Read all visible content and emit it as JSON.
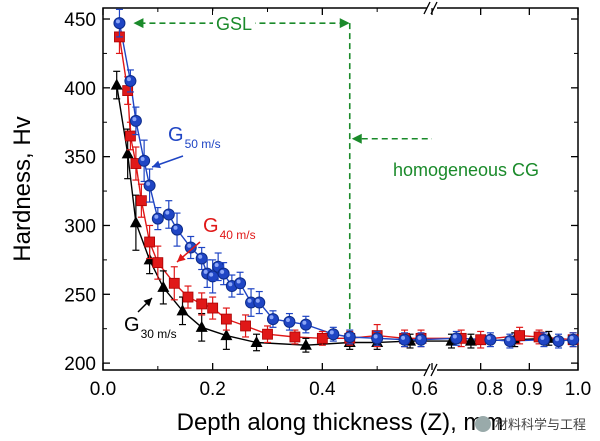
{
  "chart_data": {
    "type": "scatter",
    "xlabel": "Depth along thickness (Z), mm",
    "ylabel": "Hardness, Hv",
    "ylim": [
      195,
      458
    ],
    "yticks": [
      200,
      250,
      300,
      350,
      400,
      450
    ],
    "x_axis_segments": [
      {
        "range": [
          0.0,
          0.6
        ],
        "ticks": [
          0.0,
          0.2,
          0.4,
          0.6
        ],
        "tick_labels": [
          "0.0",
          "0.2",
          "0.4",
          "0.6"
        ]
      },
      {
        "range": [
          0.7,
          1.0
        ],
        "ticks": [
          0.8,
          0.9,
          1.0
        ],
        "tick_labels": [
          "0.8",
          "0.9",
          "1.0"
        ]
      }
    ],
    "axis_break": "between 0.6 and 0.7",
    "series": [
      {
        "name": "G50m/s",
        "label_main": "G",
        "label_sub": "50 m/s",
        "color": "#1f45c4",
        "marker": "circle",
        "points": [
          [
            0.03,
            447,
            10
          ],
          [
            0.05,
            405,
            8
          ],
          [
            0.06,
            376,
            10
          ],
          [
            0.075,
            347,
            15
          ],
          [
            0.085,
            329,
            12
          ],
          [
            0.1,
            305,
            8
          ],
          [
            0.12,
            308,
            10
          ],
          [
            0.135,
            297,
            12
          ],
          [
            0.16,
            284,
            8
          ],
          [
            0.18,
            276,
            8
          ],
          [
            0.19,
            265,
            10
          ],
          [
            0.2,
            263,
            12
          ],
          [
            0.21,
            270,
            10
          ],
          [
            0.22,
            265,
            8
          ],
          [
            0.235,
            256,
            8
          ],
          [
            0.25,
            258,
            8
          ],
          [
            0.27,
            244,
            10
          ],
          [
            0.285,
            244,
            8
          ],
          [
            0.31,
            232,
            6
          ],
          [
            0.34,
            230,
            6
          ],
          [
            0.37,
            228,
            6
          ],
          [
            0.42,
            221,
            5
          ],
          [
            0.45,
            219,
            5
          ],
          [
            0.5,
            218,
            5
          ],
          [
            0.55,
            217,
            5
          ],
          [
            0.58,
            217,
            5
          ],
          [
            0.75,
            218,
            5
          ],
          [
            0.82,
            217,
            5
          ],
          [
            0.86,
            216,
            5
          ],
          [
            0.93,
            217,
            5
          ],
          [
            0.96,
            216,
            5
          ],
          [
            0.99,
            217,
            5
          ]
        ]
      },
      {
        "name": "G40m/s",
        "label_main": "G",
        "label_sub": "40 m/s",
        "color": "#e01818",
        "marker": "square",
        "points": [
          [
            0.03,
            437,
            12
          ],
          [
            0.045,
            398,
            10
          ],
          [
            0.05,
            365,
            10
          ],
          [
            0.06,
            345,
            12
          ],
          [
            0.07,
            318,
            12
          ],
          [
            0.085,
            288,
            12
          ],
          [
            0.1,
            273,
            12
          ],
          [
            0.13,
            258,
            12
          ],
          [
            0.155,
            248,
            8
          ],
          [
            0.18,
            243,
            8
          ],
          [
            0.2,
            240,
            8
          ],
          [
            0.225,
            232,
            8
          ],
          [
            0.26,
            227,
            8
          ],
          [
            0.3,
            221,
            6
          ],
          [
            0.35,
            219,
            5
          ],
          [
            0.4,
            218,
            5
          ],
          [
            0.45,
            218,
            5
          ],
          [
            0.5,
            220,
            8
          ],
          [
            0.55,
            218,
            6
          ],
          [
            0.58,
            218,
            6
          ],
          [
            0.76,
            218,
            6
          ],
          [
            0.8,
            217,
            6
          ],
          [
            0.88,
            220,
            6
          ],
          [
            0.92,
            219,
            5
          ],
          [
            0.99,
            217,
            5
          ]
        ]
      },
      {
        "name": "G30m/s",
        "label_main": "G",
        "label_sub": "30 m/s",
        "color": "#000000",
        "marker": "triangle",
        "points": [
          [
            0.025,
            402,
            10
          ],
          [
            0.045,
            352,
            18
          ],
          [
            0.06,
            302,
            20
          ],
          [
            0.085,
            275,
            10
          ],
          [
            0.11,
            255,
            12
          ],
          [
            0.145,
            238,
            10
          ],
          [
            0.18,
            226,
            10
          ],
          [
            0.225,
            220,
            10
          ],
          [
            0.28,
            215,
            6
          ],
          [
            0.37,
            213,
            5
          ],
          [
            0.45,
            215,
            5
          ],
          [
            0.5,
            215,
            5
          ],
          [
            0.56,
            216,
            5
          ],
          [
            0.74,
            216,
            5
          ],
          [
            0.78,
            216,
            5
          ],
          [
            0.87,
            217,
            5
          ],
          [
            0.94,
            218,
            5
          ]
        ]
      }
    ],
    "annotations": [
      {
        "text": "GSL",
        "type": "span-arrow",
        "x_range": [
          0.03,
          0.45
        ],
        "y": 447,
        "color": "#1a8a2a"
      },
      {
        "text": "homogeneous CG",
        "type": "arrow-left",
        "x_from": 0.86,
        "x_to": 0.45,
        "y": 363,
        "color": "#1a8a2a"
      },
      {
        "type": "vertical-dashed",
        "x": 0.45,
        "y_range": [
          215,
          447
        ],
        "color": "#1a8a2a"
      }
    ]
  },
  "watermark": {
    "text": "材料科学与工程"
  }
}
